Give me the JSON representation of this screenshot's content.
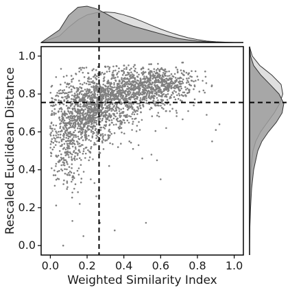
{
  "chart_data": {
    "type": "scatter",
    "title": "",
    "xlabel": "Weighted Similarity Index",
    "ylabel": "Rescaled Euclidean Distance",
    "xlim": [
      -0.05,
      1.05
    ],
    "ylim": [
      -0.05,
      1.05
    ],
    "x_ticks": [
      "0.0",
      "0.2",
      "0.4",
      "0.6",
      "0.8",
      "1.0"
    ],
    "y_ticks": [
      "0.0",
      "0.2",
      "0.4",
      "0.6",
      "0.8",
      "1.0"
    ],
    "point_color": "#808080",
    "approx_point_count": 2500,
    "reference_lines": {
      "x": 0.265,
      "y": 0.755,
      "style": "dashed",
      "color": "#000000"
    },
    "scatter_points": [
      [
        0.07,
        0.0
      ],
      [
        0.12,
        0.13
      ],
      [
        0.16,
        0.22
      ],
      [
        0.35,
        0.08
      ],
      [
        0.52,
        0.12
      ],
      [
        0.27,
        0.12
      ],
      [
        0.02,
        0.7
      ],
      [
        0.08,
        0.38
      ],
      [
        0.21,
        0.45
      ],
      [
        0.18,
        0.05
      ],
      [
        0.25,
        0.26
      ],
      [
        0.43,
        0.55
      ],
      [
        0.63,
        0.62
      ],
      [
        0.75,
        0.71
      ],
      [
        0.82,
        0.76
      ],
      [
        0.85,
        0.69
      ],
      [
        0.88,
        0.55
      ],
      [
        0.9,
        0.61
      ],
      [
        0.92,
        0.64
      ],
      [
        0.45,
        0.51
      ],
      [
        0.6,
        0.35
      ],
      [
        0.24,
        0.33
      ],
      [
        0.32,
        0.42
      ],
      [
        0.05,
        0.45
      ],
      [
        0.48,
        0.53
      ],
      [
        0.5,
        0.46
      ],
      [
        0.38,
        0.62
      ],
      [
        0.55,
        0.48
      ],
      [
        0.13,
        0.3
      ],
      [
        0.12,
        0.28
      ],
      [
        0.19,
        0.57
      ],
      [
        0.22,
        0.35
      ],
      [
        0.03,
        0.79
      ],
      [
        0.0,
        0.62
      ],
      [
        0.01,
        0.69
      ],
      [
        0.58,
        0.45
      ]
    ],
    "scatter_cluster": {
      "description_free": true,
      "centers": [
        [
          0.2,
          0.7
        ],
        [
          0.45,
          0.82
        ],
        [
          0.1,
          0.55
        ],
        [
          0.6,
          0.86
        ],
        [
          0.3,
          0.75
        ]
      ],
      "spreads": [
        [
          0.09,
          0.09
        ],
        [
          0.12,
          0.06
        ],
        [
          0.05,
          0.12
        ],
        [
          0.1,
          0.04
        ],
        [
          0.1,
          0.07
        ]
      ],
      "weights": [
        0.32,
        0.3,
        0.13,
        0.15,
        0.1
      ]
    },
    "top_marginal": {
      "series": [
        {
          "x": [
            -0.05,
            0.05,
            0.1,
            0.15,
            0.2,
            0.25,
            0.3,
            0.35,
            0.4,
            0.45,
            0.5,
            0.55,
            0.6,
            0.65,
            0.7,
            0.75,
            0.8,
            0.85,
            0.9,
            0.95,
            1.0,
            1.05
          ],
          "density": [
            0.0,
            0.35,
            0.75,
            0.97,
            1.0,
            0.93,
            0.8,
            0.66,
            0.54,
            0.45,
            0.38,
            0.31,
            0.24,
            0.17,
            0.11,
            0.07,
            0.04,
            0.02,
            0.01,
            0.0,
            0.0,
            0.0
          ],
          "color": "#9e9e9e"
        },
        {
          "x": [
            -0.05,
            0.05,
            0.1,
            0.15,
            0.2,
            0.25,
            0.3,
            0.35,
            0.4,
            0.45,
            0.5,
            0.55,
            0.6,
            0.65,
            0.7,
            0.75,
            0.8,
            0.85,
            0.9,
            0.95,
            1.0,
            1.05
          ],
          "density": [
            0.0,
            0.18,
            0.42,
            0.62,
            0.76,
            0.82,
            0.84,
            0.82,
            0.76,
            0.68,
            0.58,
            0.47,
            0.37,
            0.28,
            0.2,
            0.13,
            0.08,
            0.04,
            0.02,
            0.01,
            0.0,
            0.0
          ],
          "color": "#d9d9d9"
        }
      ]
    },
    "right_marginal": {
      "series": [
        {
          "y": [
            -0.05,
            0.0,
            0.1,
            0.2,
            0.3,
            0.4,
            0.5,
            0.55,
            0.6,
            0.65,
            0.7,
            0.75,
            0.8,
            0.85,
            0.9,
            0.95,
            1.0,
            1.05
          ],
          "density": [
            0.0,
            0.0,
            0.01,
            0.03,
            0.06,
            0.12,
            0.24,
            0.36,
            0.55,
            0.78,
            0.95,
            1.0,
            0.86,
            0.6,
            0.33,
            0.12,
            0.03,
            0.0
          ],
          "color": "#9e9e9e"
        },
        {
          "y": [
            -0.05,
            0.0,
            0.1,
            0.2,
            0.3,
            0.4,
            0.5,
            0.55,
            0.6,
            0.65,
            0.7,
            0.75,
            0.8,
            0.85,
            0.9,
            0.95,
            1.0,
            1.05
          ],
          "density": [
            0.0,
            0.0,
            0.0,
            0.01,
            0.02,
            0.04,
            0.1,
            0.18,
            0.32,
            0.52,
            0.72,
            0.88,
            0.97,
            0.92,
            0.65,
            0.3,
            0.08,
            0.0
          ],
          "color": "#d9d9d9"
        }
      ]
    }
  }
}
